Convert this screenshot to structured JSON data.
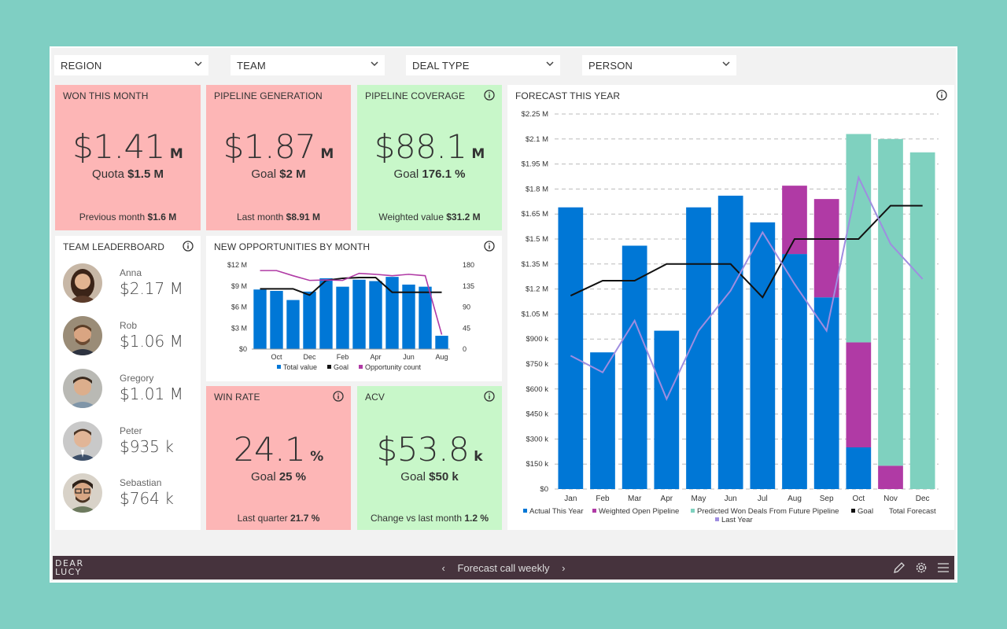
{
  "filters": [
    {
      "label": "REGION"
    },
    {
      "label": "TEAM"
    },
    {
      "label": "DEAL TYPE"
    },
    {
      "label": "PERSON"
    }
  ],
  "won": {
    "title": "WON THIS MONTH",
    "value": "$1.41",
    "unit": "M",
    "sub_label": "Quota",
    "sub_value": "$1.5 M",
    "foot_label": "Previous month",
    "foot_value": "$1.6 M"
  },
  "pipegen": {
    "title": "PIPELINE GENERATION",
    "value": "$1.87",
    "unit": "M",
    "sub_label": "Goal",
    "sub_value": "$2 M",
    "foot_label": "Last month",
    "foot_value": "$8.91 M"
  },
  "coverage": {
    "title": "PIPELINE COVERAGE",
    "value": "$88.1",
    "unit": "M",
    "sub_label": "Goal",
    "sub_value": "176.1 %",
    "foot_label": "Weighted value",
    "foot_value": "$31.2 M"
  },
  "winrate": {
    "title": "WIN RATE",
    "value": "24.1",
    "unit": "%",
    "sub_label": "Goal",
    "sub_value": "25 %",
    "foot_label": "Last quarter",
    "foot_value": "21.7 %"
  },
  "acv": {
    "title": "ACV",
    "value": "$53.8",
    "unit": "k",
    "sub_label": "Goal",
    "sub_value": "$50 k",
    "foot_label": "Change vs last month",
    "foot_value": "1.2 %"
  },
  "leaderboard": {
    "title": "TEAM LEADERBOARD",
    "people": [
      {
        "name": "Anna",
        "value": "$2.17 M"
      },
      {
        "name": "Rob",
        "value": "$1.06 M"
      },
      {
        "name": "Gregory",
        "value": "$1.01 M"
      },
      {
        "name": "Peter",
        "value": "$935 k"
      },
      {
        "name": "Sebastian",
        "value": "$764 k"
      }
    ]
  },
  "colors": {
    "blue": "#0077d6",
    "purple": "#b03aa5",
    "teal": "#7fd1bf",
    "lavender": "#9f8de0",
    "black": "#111111",
    "red_card": "#fdb6b6",
    "green_card": "#c8f7c9",
    "bar_bg": "#46333d"
  },
  "chart_data": [
    {
      "type": "bar",
      "title": "NEW OPPORTUNITIES BY MONTH",
      "categories": [
        "",
        "Oct",
        "",
        "Dec",
        "",
        "Feb",
        "",
        "Apr",
        "",
        "Jun",
        "",
        "Aug"
      ],
      "month_ticks": [
        "Oct",
        "Dec",
        "Feb",
        "Apr",
        "Jun",
        "Aug"
      ],
      "ylim": [
        0,
        12
      ],
      "y_ticks": [
        "$0",
        "$3 M",
        "$6 M",
        "$9 M",
        "$12 M"
      ],
      "y2lim": [
        0,
        180
      ],
      "y2_ticks": [
        "0",
        "45",
        "90",
        "135",
        "180"
      ],
      "series": [
        {
          "name": "Total value",
          "kind": "bar",
          "values": [
            8.5,
            8.3,
            7.0,
            8.2,
            10.1,
            8.9,
            9.9,
            9.7,
            10.3,
            9.2,
            8.9,
            1.9
          ]
        },
        {
          "name": "Goal",
          "kind": "line",
          "values": [
            8.6,
            8.6,
            8.6,
            7.7,
            9.8,
            10.1,
            10.2,
            10.2,
            8.1,
            8.1,
            8.1,
            8.1
          ]
        },
        {
          "name": "Opportunity count",
          "kind": "line2",
          "values": [
            168,
            168,
            157,
            147,
            148,
            147,
            162,
            160,
            157,
            160,
            157,
            31
          ]
        }
      ],
      "legend": [
        "Total value",
        "Goal",
        "Opportunity count"
      ]
    },
    {
      "type": "bar",
      "title": "FORECAST THIS YEAR",
      "categories": [
        "Jan",
        "Feb",
        "Mar",
        "Apr",
        "May",
        "Jun",
        "Jul",
        "Aug",
        "Sep",
        "Oct",
        "Nov",
        "Dec"
      ],
      "ylim": [
        0,
        2.25
      ],
      "y_ticks": [
        "$0",
        "$150 k",
        "$300 k",
        "$450 k",
        "$600 k",
        "$750 k",
        "$900 k",
        "$1.05 M",
        "$1.2 M",
        "$1.35 M",
        "$1.5 M",
        "$1.65 M",
        "$1.8 M",
        "$1.95 M",
        "$2.1 M",
        "$2.25 M"
      ],
      "series": [
        {
          "name": "Actual This Year",
          "kind": "stack",
          "values": [
            1.69,
            0.82,
            1.46,
            0.95,
            1.69,
            1.76,
            1.6,
            1.41,
            1.15,
            0.25,
            0,
            0
          ]
        },
        {
          "name": "Weighted Open Pipeline",
          "kind": "stack",
          "values": [
            0,
            0,
            0,
            0,
            0,
            0,
            0,
            0.41,
            0.59,
            0.63,
            0.14,
            0
          ]
        },
        {
          "name": "Predicted Won Deals From Future Pipeline",
          "kind": "stack",
          "values": [
            0,
            0,
            0,
            0,
            0,
            0,
            0,
            0,
            0,
            1.25,
            1.96,
            2.02
          ]
        },
        {
          "name": "Goal",
          "kind": "line",
          "values": [
            1.16,
            1.25,
            1.25,
            1.35,
            1.35,
            1.35,
            1.15,
            1.5,
            1.5,
            1.5,
            1.7,
            1.7
          ]
        },
        {
          "name": "Last Year",
          "kind": "line",
          "values": [
            0.8,
            0.7,
            1.01,
            0.54,
            0.95,
            1.19,
            1.54,
            1.23,
            0.95,
            1.87,
            1.47,
            1.26
          ]
        }
      ],
      "total_forecast_label": "Total Forecast",
      "legend": [
        "Actual This Year",
        "Weighted Open Pipeline",
        "Predicted Won Deals From Future Pipeline",
        "Goal",
        "Total Forecast",
        "Last Year"
      ]
    }
  ],
  "bottombar": {
    "logo_line1": "DEAR",
    "logo_line2": "LUCY",
    "title": "Forecast call weekly",
    "prev": "‹",
    "next": "›"
  }
}
